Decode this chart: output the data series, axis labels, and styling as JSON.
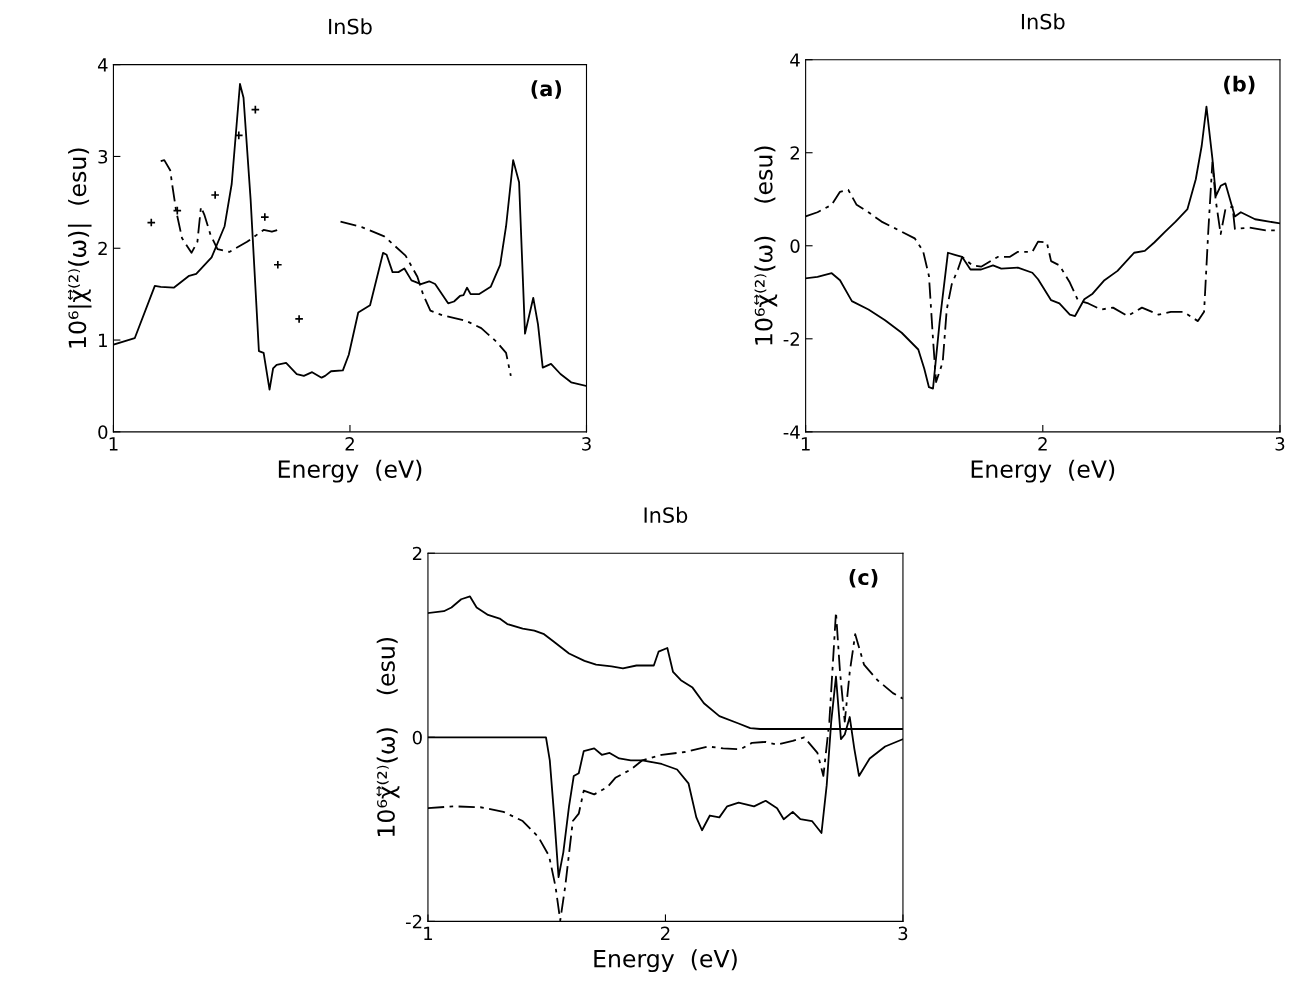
{
  "chart_data": [
    {
      "type": "line",
      "title": "InSb",
      "xlabel": "Energy  (eV)",
      "ylabel": "10⁶|χ⃡⁽²⁾(ω)|  (esu)",
      "xlim": [
        1,
        3
      ],
      "ylim": [
        0,
        4
      ],
      "xticks": [
        1,
        2,
        3
      ],
      "yticks": [
        0,
        1,
        2,
        3,
        4
      ],
      "grid": false,
      "legend": false,
      "annotations": [
        "(a)"
      ],
      "series": [
        {
          "color": "#000000",
          "line_style": "solid",
          "x": [
            1.0,
            1.09,
            1.175,
            1.2,
            1.255,
            1.32,
            1.35,
            1.415,
            1.47,
            1.5,
            1.535,
            1.55,
            1.58,
            1.615,
            1.635,
            1.66,
            1.675,
            1.69,
            1.73,
            1.775,
            1.805,
            1.84,
            1.88,
            1.895,
            1.92,
            1.97,
            1.995,
            2.035,
            2.085,
            2.14,
            2.155,
            2.18,
            2.205,
            2.23,
            2.26,
            2.3,
            2.335,
            2.36,
            2.415,
            2.44,
            2.465,
            2.48,
            2.495,
            2.51,
            2.545,
            2.595,
            2.635,
            2.66,
            2.69,
            2.715,
            2.74,
            2.775,
            2.795,
            2.815,
            2.85,
            2.89,
            2.935,
            3.0
          ],
          "values": [
            0.95,
            1.02,
            1.59,
            1.58,
            1.57,
            1.7,
            1.72,
            1.9,
            2.24,
            2.7,
            3.79,
            3.64,
            2.53,
            0.88,
            0.86,
            0.46,
            0.69,
            0.73,
            0.75,
            0.63,
            0.61,
            0.65,
            0.59,
            0.61,
            0.66,
            0.67,
            0.84,
            1.3,
            1.38,
            1.95,
            1.93,
            1.74,
            1.74,
            1.78,
            1.65,
            1.61,
            1.64,
            1.61,
            1.4,
            1.42,
            1.48,
            1.49,
            1.57,
            1.5,
            1.5,
            1.58,
            1.82,
            2.24,
            2.96,
            2.72,
            1.07,
            1.46,
            1.17,
            0.7,
            0.74,
            0.63,
            0.54,
            0.5
          ]
        },
        {
          "color": "#000000",
          "line_style": "dashdot",
          "x": [
            1.2,
            1.215,
            1.24,
            1.248,
            1.265,
            1.29,
            1.33,
            1.355,
            1.37,
            1.385,
            1.41,
            1.44,
            1.49,
            1.565,
            1.635,
            1.67,
            1.695,
            1.8,
            1.96,
            2.05,
            2.145,
            2.235,
            2.285,
            2.31,
            2.34,
            2.39,
            2.49,
            2.555,
            2.62,
            2.66,
            2.68
          ],
          "values": [
            2.95,
            2.96,
            2.85,
            2.7,
            2.41,
            2.11,
            1.95,
            2.07,
            2.45,
            2.36,
            2.15,
            1.99,
            1.96,
            2.07,
            2.2,
            2.18,
            2.2,
            null,
            2.29,
            2.23,
            2.13,
            1.92,
            1.69,
            1.49,
            1.32,
            1.27,
            1.21,
            1.13,
            0.98,
            0.86,
            0.61
          ]
        },
        {
          "type": "scatter",
          "color": "#000000",
          "marker": "cross",
          "x": [
            1.16,
            1.27,
            1.43,
            1.53,
            1.6,
            1.64,
            1.695,
            1.785
          ],
          "values": [
            2.28,
            2.41,
            2.58,
            3.23,
            3.51,
            2.34,
            1.82,
            1.23
          ]
        }
      ]
    },
    {
      "type": "line",
      "title": "InSb",
      "xlabel": "Energy  (eV)",
      "ylabel": "10⁶χ⃡⁽²⁾(ω)    (esu)",
      "xlim": [
        1,
        3
      ],
      "ylim": [
        -4,
        4
      ],
      "xticks": [
        1,
        2,
        3
      ],
      "yticks": [
        -4,
        -2,
        0,
        2,
        4
      ],
      "grid": false,
      "legend": false,
      "annotations": [
        "(b)"
      ],
      "series": [
        {
          "color": "#000000",
          "line_style": "solid",
          "x": [
            1.0,
            1.05,
            1.11,
            1.145,
            1.195,
            1.265,
            1.335,
            1.405,
            1.475,
            1.5,
            1.52,
            1.537,
            1.565,
            1.6,
            1.633,
            1.66,
            1.695,
            1.74,
            1.79,
            1.825,
            1.895,
            1.956,
            1.98,
            2.035,
            2.07,
            2.114,
            2.136,
            2.175,
            2.21,
            2.26,
            2.315,
            2.385,
            2.43,
            2.47,
            2.515,
            2.56,
            2.61,
            2.645,
            2.67,
            2.69,
            2.715,
            2.73,
            2.75,
            2.77,
            2.81,
            2.835,
            2.895,
            3.0
          ],
          "values": [
            -0.7,
            -0.67,
            -0.59,
            -0.74,
            -1.19,
            -1.37,
            -1.6,
            -1.87,
            -2.23,
            -2.64,
            -3.04,
            -3.07,
            -1.64,
            -0.15,
            -0.2,
            -0.24,
            -0.51,
            -0.51,
            -0.42,
            -0.49,
            -0.47,
            -0.58,
            -0.72,
            -1.17,
            -1.24,
            -1.48,
            -1.51,
            -1.15,
            -1.03,
            -0.74,
            -0.54,
            -0.15,
            -0.11,
            0.07,
            0.3,
            0.52,
            0.79,
            1.43,
            2.15,
            2.99,
            1.88,
            1.07,
            1.29,
            1.34,
            0.63,
            0.72,
            0.57,
            0.48
          ]
        },
        {
          "color": "#000000",
          "line_style": "dashdot",
          "x": [
            1.0,
            1.05,
            1.11,
            1.145,
            1.18,
            1.215,
            1.265,
            1.32,
            1.39,
            1.46,
            1.495,
            1.52,
            1.537,
            1.55,
            1.578,
            1.595,
            1.616,
            1.642,
            1.66,
            1.703,
            1.74,
            1.81,
            1.86,
            1.895,
            1.956,
            1.98,
            2.017,
            2.035,
            2.07,
            2.114,
            2.148,
            2.192,
            2.245,
            2.296,
            2.357,
            2.418,
            2.488,
            2.54,
            2.593,
            2.654,
            2.68,
            2.698,
            2.715,
            2.729,
            2.75,
            2.77,
            2.8,
            2.81,
            2.87,
            2.94,
            3.0
          ],
          "values": [
            0.63,
            0.72,
            0.88,
            1.16,
            1.2,
            0.88,
            0.72,
            0.52,
            0.34,
            0.16,
            -0.11,
            -0.65,
            -2.0,
            -2.93,
            -2.5,
            -1.37,
            -0.83,
            -0.51,
            -0.24,
            -0.42,
            -0.45,
            -0.24,
            -0.24,
            -0.13,
            -0.13,
            0.09,
            0.07,
            -0.33,
            -0.42,
            -0.79,
            -1.17,
            -1.24,
            -1.37,
            -1.33,
            -1.51,
            -1.33,
            -1.48,
            -1.42,
            -1.42,
            -1.62,
            -1.42,
            0.34,
            1.79,
            0.98,
            0.25,
            0.79,
            0.84,
            0.36,
            0.39,
            0.33,
            0.33
          ]
        }
      ]
    },
    {
      "type": "line",
      "title": "InSb",
      "xlabel": "Energy  (eV)",
      "ylabel": "10⁶χ⃡⁽²⁾(ω)    (esu)",
      "xlim": [
        1,
        3
      ],
      "ylim": [
        -2,
        2
      ],
      "xticks": [
        1,
        2,
        3
      ],
      "yticks": [
        -2,
        0,
        2
      ],
      "grid": false,
      "legend": false,
      "annotations": [
        "(c)"
      ],
      "series": [
        {
          "color": "#000000",
          "line_style": "solid",
          "x": [
            1.0,
            1.067,
            1.099,
            1.14,
            1.177,
            1.205,
            1.253,
            1.302,
            1.334,
            1.399,
            1.448,
            1.489,
            1.529,
            1.594,
            1.659,
            1.708,
            1.773,
            1.821,
            1.878,
            1.951,
            1.971,
            2.008,
            2.032,
            2.065,
            2.114,
            2.162,
            2.227,
            2.308,
            2.357,
            2.398,
            3.0
          ],
          "values": [
            1.35,
            1.37,
            1.41,
            1.5,
            1.53,
            1.41,
            1.33,
            1.29,
            1.23,
            1.18,
            1.16,
            1.12,
            1.04,
            0.91,
            0.83,
            0.79,
            0.77,
            0.75,
            0.78,
            0.78,
            0.93,
            0.97,
            0.71,
            0.62,
            0.54,
            0.37,
            0.23,
            0.15,
            0.1,
            0.09,
            0.09
          ]
        },
        {
          "color": "#000000",
          "line_style": "solid",
          "x": [
            1.0,
            1.497,
            1.513,
            1.532,
            1.55,
            1.57,
            1.594,
            1.614,
            1.635,
            1.656,
            1.7,
            1.732,
            1.765,
            1.805,
            1.854,
            1.903,
            1.984,
            2.049,
            2.097,
            2.13,
            2.154,
            2.187,
            2.227,
            2.26,
            2.308,
            2.373,
            2.422,
            2.47,
            2.498,
            2.536,
            2.568,
            2.617,
            2.657,
            2.679,
            2.698,
            2.718,
            2.739,
            2.755,
            2.776,
            2.795,
            2.815,
            2.86,
            2.925,
            3.0
          ],
          "values": [
            0.0,
            0.0,
            -0.25,
            -0.87,
            -1.52,
            -1.25,
            -0.75,
            -0.42,
            -0.39,
            -0.15,
            -0.12,
            -0.19,
            -0.17,
            -0.23,
            -0.25,
            -0.25,
            -0.29,
            -0.35,
            -0.5,
            -0.87,
            -1.01,
            -0.85,
            -0.87,
            -0.75,
            -0.71,
            -0.75,
            -0.69,
            -0.77,
            -0.89,
            -0.81,
            -0.89,
            -0.91,
            -1.04,
            -0.52,
            0.17,
            0.66,
            -0.02,
            0.03,
            0.22,
            -0.12,
            -0.42,
            -0.23,
            -0.1,
            -0.02
          ]
        },
        {
          "color": "#000000",
          "line_style": "dashdot",
          "x": [
            1.0,
            1.107,
            1.221,
            1.318,
            1.399,
            1.464,
            1.51,
            1.537,
            1.557,
            1.578,
            1.61,
            1.635,
            1.656,
            1.7,
            1.756,
            1.789,
            1.854,
            1.903,
            1.984,
            2.081,
            2.179,
            2.243,
            2.316,
            2.365,
            2.422,
            2.47,
            2.536,
            2.584,
            2.64,
            2.665,
            2.69,
            2.718,
            2.735,
            2.755,
            2.776,
            2.799,
            2.836,
            2.893,
            2.958,
            3.0
          ],
          "values": [
            -0.77,
            -0.75,
            -0.76,
            -0.81,
            -0.91,
            -1.08,
            -1.29,
            -1.62,
            -1.99,
            -1.62,
            -0.91,
            -0.83,
            -0.58,
            -0.62,
            -0.54,
            -0.44,
            -0.35,
            -0.25,
            -0.19,
            -0.16,
            -0.1,
            -0.12,
            -0.13,
            -0.06,
            -0.05,
            -0.08,
            -0.04,
            0.0,
            -0.17,
            -0.42,
            0.17,
            1.36,
            0.71,
            0.17,
            0.71,
            1.12,
            0.79,
            0.62,
            0.48,
            0.42
          ]
        }
      ]
    }
  ]
}
